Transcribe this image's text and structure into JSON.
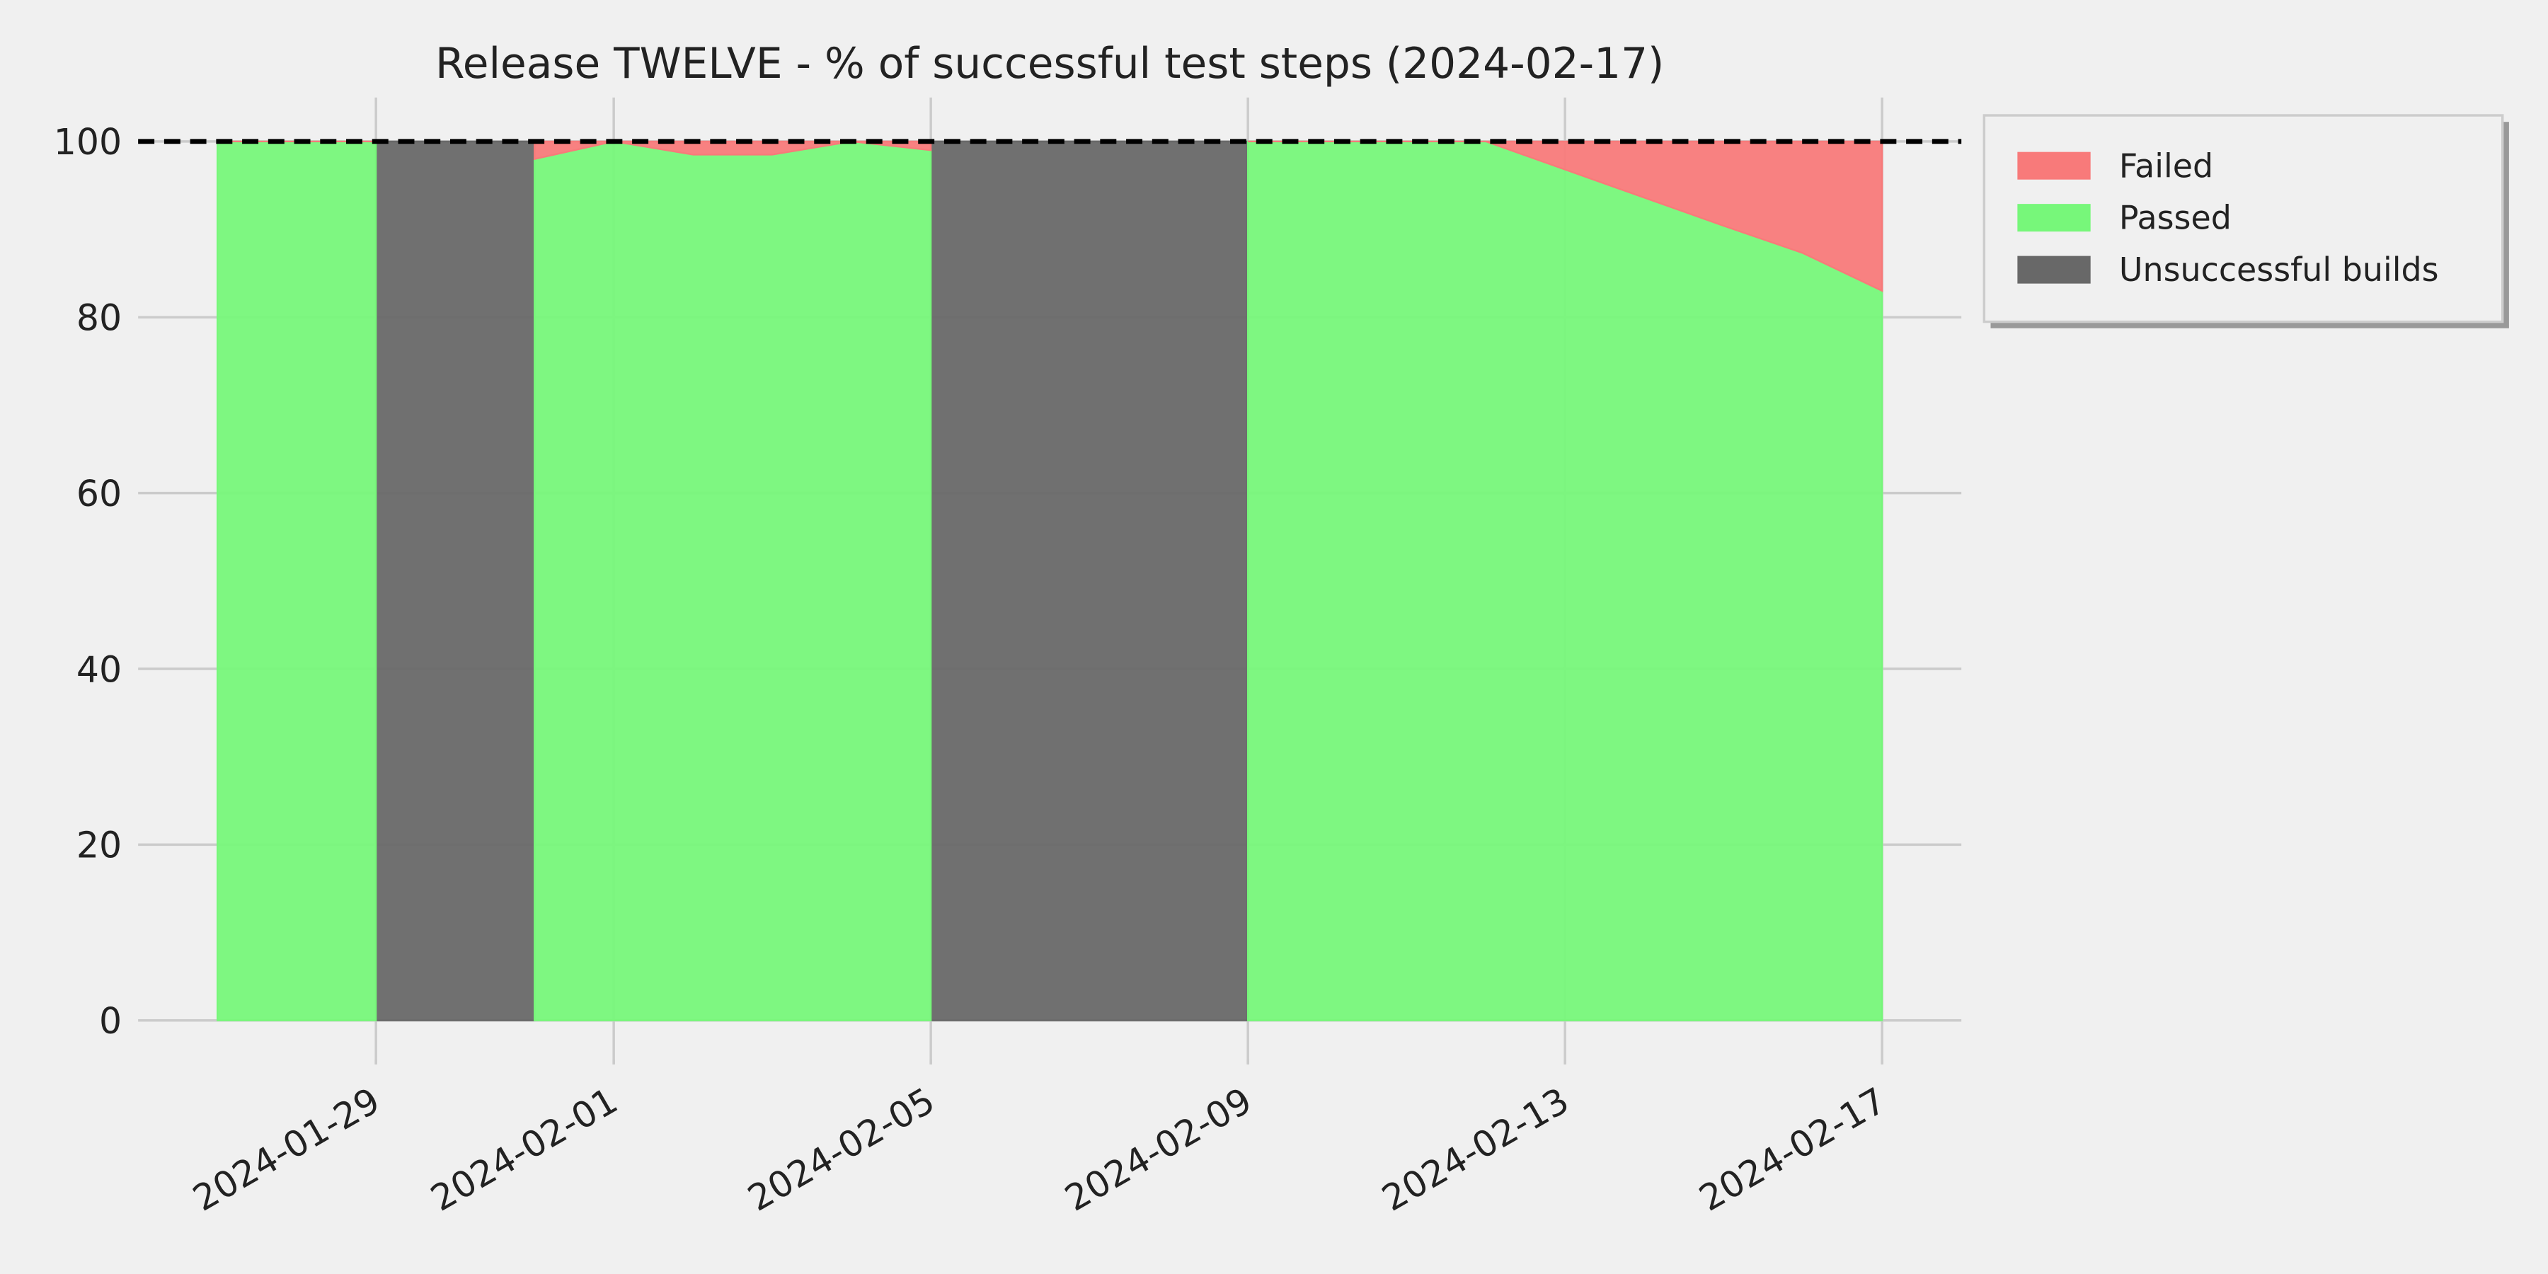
{
  "chart_data": {
    "type": "area",
    "title": "Release TWELVE - % of successful test steps (2024-02-17)",
    "x": [
      "2024-01-27",
      "2024-01-28",
      "2024-01-29",
      "2024-01-30",
      "2024-01-31",
      "2024-02-01",
      "2024-02-02",
      "2024-02-03",
      "2024-02-04",
      "2024-02-05",
      "2024-02-06",
      "2024-02-07",
      "2024-02-08",
      "2024-02-09",
      "2024-02-10",
      "2024-02-11",
      "2024-02-12",
      "2024-02-13",
      "2024-02-14",
      "2024-02-15",
      "2024-02-16",
      "2024-02-17"
    ],
    "series": [
      {
        "name": "Failed",
        "color": "#f87a7a",
        "stack": "tests",
        "values": [
          0,
          0,
          0,
          null,
          2,
          0,
          1.5,
          1.5,
          0,
          1,
          null,
          null,
          null,
          0,
          0,
          0,
          0,
          3.2,
          6.4,
          9.6,
          12.7,
          17
        ]
      },
      {
        "name": "Passed",
        "color": "#77f77a",
        "stack": "tests",
        "values": [
          100,
          100,
          100,
          null,
          98,
          100,
          98.5,
          98.5,
          100,
          99,
          null,
          null,
          null,
          100,
          100,
          100,
          100,
          96.8,
          93.6,
          90.4,
          87.3,
          83
        ]
      },
      {
        "name": "Unsuccessful builds",
        "color": "#686868",
        "values": [
          null,
          null,
          100,
          100,
          100,
          null,
          null,
          null,
          null,
          100,
          100,
          100,
          100,
          100,
          null,
          null,
          null,
          null,
          null,
          null,
          null,
          null
        ]
      }
    ],
    "reference_line": 100,
    "xlim": [
      "2024-01-26",
      "2024-02-18"
    ],
    "xticks": [
      "2024-01-29",
      "2024-02-01",
      "2024-02-05",
      "2024-02-09",
      "2024-02-13",
      "2024-02-17"
    ],
    "ylim": [
      -5,
      105
    ],
    "yticks": [
      0,
      20,
      40,
      60,
      80,
      100
    ],
    "grid": true,
    "legend": "outside-upper-right"
  }
}
